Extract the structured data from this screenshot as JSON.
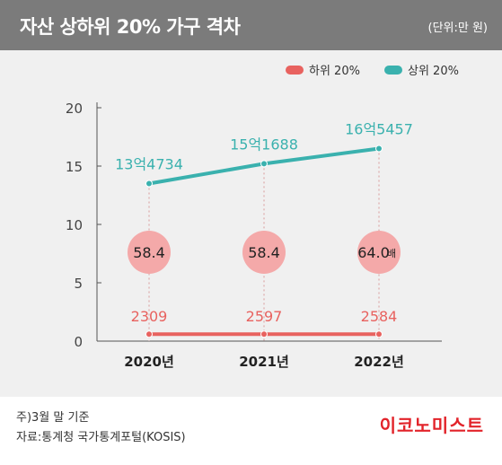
{
  "header": {
    "title": "자산 상하위 20% 가구 격차",
    "unit": "(단위:만 원)"
  },
  "chart_data": {
    "type": "line",
    "categories": [
      "2020년",
      "2021년",
      "2022년"
    ],
    "ylim": [
      0,
      20
    ],
    "yticks": [
      "0",
      "5",
      "10",
      "15",
      "20"
    ],
    "legend_position": "top-right",
    "series": [
      {
        "name": "하위 20%",
        "color": "#e8625f",
        "values": [
          2309,
          2597,
          2584
        ],
        "plot_values": [
          0.6,
          0.6,
          0.6
        ],
        "labels": [
          "2309",
          "2597",
          "2584"
        ]
      },
      {
        "name": "상위 20%",
        "color": "#3ab1ae",
        "values": [
          134734,
          151688,
          165457
        ],
        "plot_values": [
          13.5,
          15.2,
          16.5
        ],
        "labels": [
          "13억4734",
          "15억1688",
          "16억5457"
        ]
      }
    ],
    "ratio_labels": [
      "58.4",
      "58.4",
      "64.0"
    ],
    "ratio_suffix": "배",
    "ratio_circle_color": "#f4a9a9"
  },
  "footer": {
    "note": "주)3월 말 기준",
    "source": "자료:통계청 국가통계포털(KOSIS)"
  },
  "brand": "이코노미스트"
}
